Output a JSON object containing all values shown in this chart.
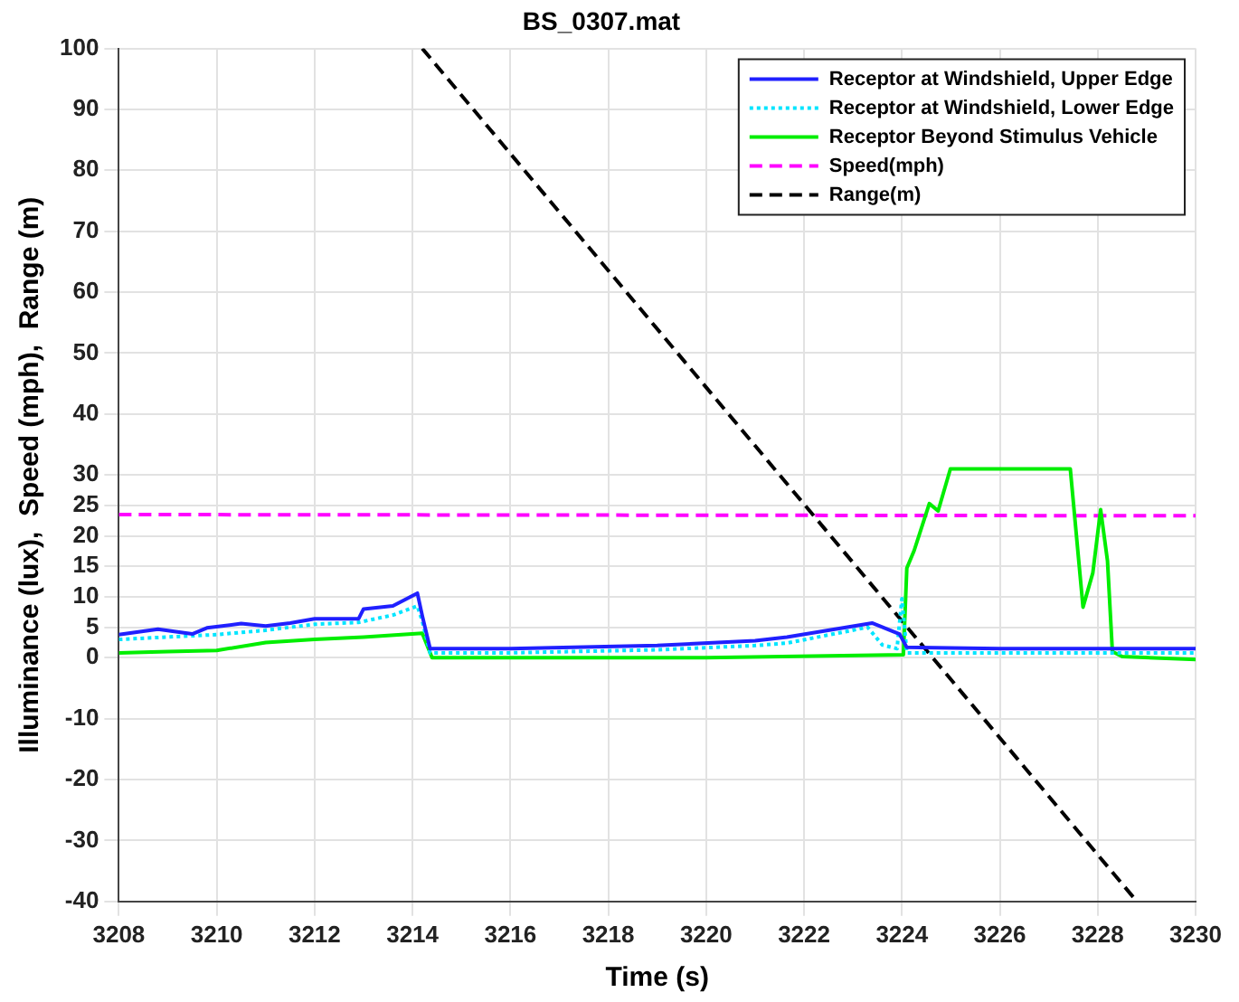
{
  "chart_data": {
    "type": "line",
    "title": "BS_0307.mat",
    "xlabel": "Time (s)",
    "ylabel": "Illuminance (lux),  Speed (mph),  Range (m)",
    "xlim": [
      3208,
      3230
    ],
    "xticks": [
      3208,
      3210,
      3212,
      3214,
      3216,
      3218,
      3220,
      3222,
      3224,
      3226,
      3228,
      3230
    ],
    "ylim": [
      -40,
      100
    ],
    "yticks": [
      -40,
      -30,
      -20,
      -10,
      0,
      5,
      10,
      15,
      20,
      25,
      30,
      40,
      50,
      60,
      70,
      80,
      90,
      100
    ],
    "grid": true,
    "legend": "top right",
    "series": [
      {
        "name": "Receptor at Windshield, Upper Edge",
        "color": "#2020ff",
        "line_style": "solid",
        "x": [
          3208,
          3208.8,
          3209.5,
          3209.8,
          3210.5,
          3211,
          3211.5,
          3212,
          3212.9,
          3213,
          3213.6,
          3214.1,
          3214.2,
          3214.36,
          3216,
          3219,
          3221,
          3221.65,
          3223.39,
          3223.95,
          3224.1,
          3226,
          3230
        ],
        "values": [
          3.8,
          4.7,
          3.9,
          4.9,
          5.6,
          5.2,
          5.7,
          6.4,
          6.4,
          8,
          8.5,
          10.6,
          6.9,
          1.5,
          1.5,
          2,
          2.8,
          3.4,
          5.7,
          3.9,
          1.7,
          1.5,
          1.5
        ]
      },
      {
        "name": "Receptor at Windshield, Lower Edge",
        "color": "#00e5ff",
        "line_style": "dotted",
        "x": [
          3208,
          3209,
          3210,
          3211,
          3212,
          3212.9,
          3213.6,
          3214.1,
          3214.2,
          3214.36,
          3216,
          3219,
          3221,
          3221.65,
          3223.3,
          3223.6,
          3223.9,
          3224,
          3224.1,
          3226,
          3230
        ],
        "values": [
          3,
          3.4,
          3.8,
          4.5,
          5.5,
          5.8,
          7,
          8.5,
          6,
          0.8,
          0.8,
          1.3,
          2,
          2.4,
          5,
          2.1,
          1.5,
          9.7,
          0.8,
          0.8,
          0.8
        ]
      },
      {
        "name": "Receptor Beyond Stimulus Vehicle",
        "color": "#00ee00",
        "line_style": "solid",
        "x": [
          3208,
          3209,
          3210,
          3211,
          3212,
          3213,
          3214.2,
          3214.4,
          3216,
          3220,
          3224.03,
          3224.1,
          3224.25,
          3224.56,
          3224.74,
          3224.99,
          3227.44,
          3227.7,
          3227.9,
          3228.06,
          3228.2,
          3228.3,
          3228.5,
          3230
        ],
        "values": [
          0.8,
          1,
          1.2,
          2.5,
          3,
          3.4,
          4,
          0,
          0,
          0,
          0.5,
          14.7,
          17.6,
          25.3,
          24.1,
          31,
          31,
          8.3,
          13.9,
          24.3,
          15.9,
          1,
          0.2,
          -0.3
        ]
      },
      {
        "name": "Speed(mph)",
        "color": "#ff00ff",
        "line_style": "dashed",
        "x": [
          3208,
          3230
        ],
        "values": [
          23.5,
          23.3
        ]
      },
      {
        "name": "Range(m)",
        "color": "#000000",
        "line_style": "dashed",
        "x": [
          3214.2,
          3228.8
        ],
        "values": [
          100,
          -40
        ]
      }
    ]
  }
}
